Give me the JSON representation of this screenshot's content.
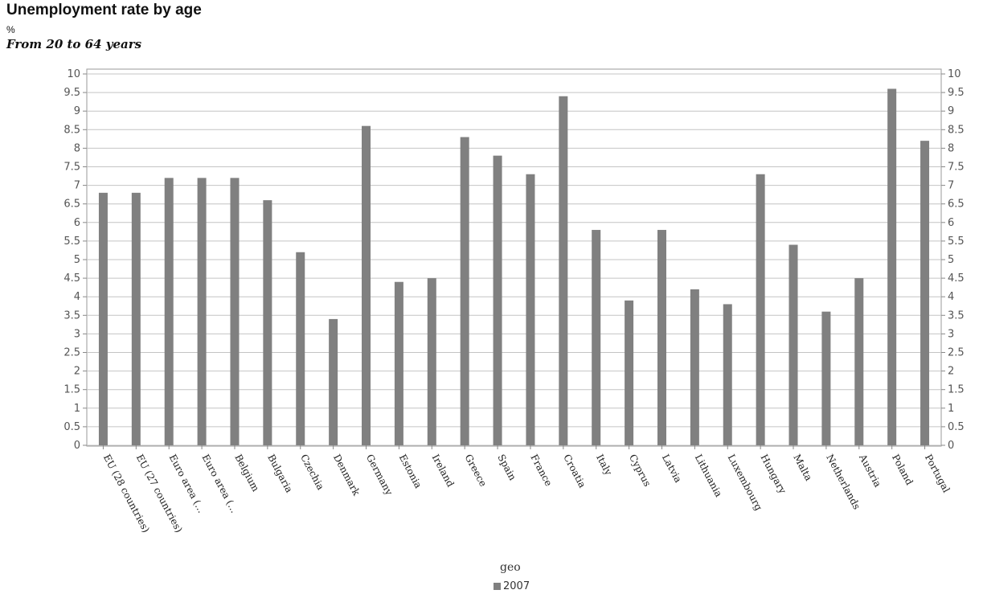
{
  "chart_data": {
    "type": "bar",
    "title": "Unemployment rate by age",
    "unit": "%",
    "subtitle": "From 20 to 64 years",
    "xlabel": "geo",
    "ylim": [
      0,
      10
    ],
    "ytick_step": 0.5,
    "grid": true,
    "legend_position": "bottom-center",
    "bar_color": "#808080",
    "categories": [
      "EU (28 countries)",
      "EU (27 countries)",
      "Euro area (...",
      "Euro area (...",
      "Belgium",
      "Bulgaria",
      "Czechia",
      "Denmark",
      "Germany",
      "Estonia",
      "Ireland",
      "Greece",
      "Spain",
      "France",
      "Croatia",
      "Italy",
      "Cyprus",
      "Latvia",
      "Lithuania",
      "Luxembourg",
      "Hungary",
      "Malta",
      "Netherlands",
      "Austria",
      "Poland",
      "Portugal"
    ],
    "series": [
      {
        "name": "2007",
        "values": [
          6.8,
          6.8,
          7.2,
          7.2,
          7.2,
          6.6,
          5.2,
          3.4,
          8.6,
          4.4,
          4.5,
          8.3,
          7.8,
          7.3,
          9.4,
          5.8,
          3.9,
          5.8,
          4.2,
          3.8,
          7.3,
          5.4,
          3.6,
          4.5,
          9.6,
          8.2
        ]
      }
    ]
  }
}
